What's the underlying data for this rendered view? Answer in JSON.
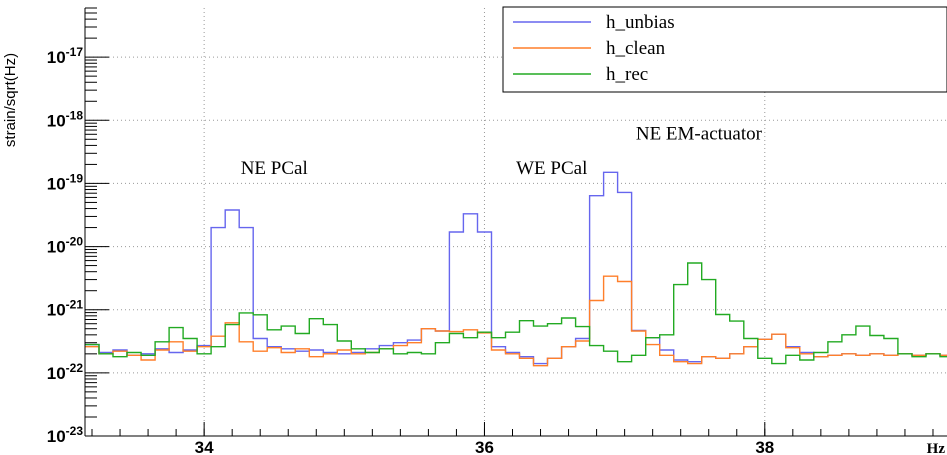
{
  "chart_data": {
    "type": "line",
    "ylabel": "strain/sqrt(Hz)",
    "xlabel": "Hz",
    "xlim": [
      33.15,
      39.3
    ],
    "ylim": [
      1e-23,
      6e-17
    ],
    "yscale": "log",
    "grid": true,
    "legend_position": "top-right",
    "x_ticks": [
      {
        "value": 34,
        "label": "34"
      },
      {
        "value": 36,
        "label": "36"
      },
      {
        "value": 38,
        "label": "38"
      }
    ],
    "y_ticks": [
      {
        "value": 1e-23,
        "base": "10",
        "exp": "-23"
      },
      {
        "value": 1e-22,
        "base": "10",
        "exp": "-22"
      },
      {
        "value": 1e-21,
        "base": "10",
        "exp": "-21"
      },
      {
        "value": 1e-20,
        "base": "10",
        "exp": "-20"
      },
      {
        "value": 1e-19,
        "base": "10",
        "exp": "-19"
      },
      {
        "value": 1e-18,
        "base": "10",
        "exp": "-18"
      },
      {
        "value": 1e-17,
        "base": "10",
        "exp": "-17"
      }
    ],
    "annotations": [
      {
        "text": "NE PCal",
        "x": 34.5,
        "y": 1.4e-19
      },
      {
        "text": "WE PCal",
        "x": 36.48,
        "y": 1.4e-19
      },
      {
        "text": "NE EM-actuator",
        "x": 37.53,
        "y": 5e-19
      }
    ],
    "bins": {
      "start": 33.15,
      "width": 0.1
    },
    "series": [
      {
        "name": "h_unbias",
        "color": "#6666ee",
        "values": [
          2.8e-22,
          2.1e-22,
          2.3e-22,
          1.9e-22,
          2e-22,
          2.4e-22,
          2.1e-22,
          2.3e-22,
          2.7e-22,
          2e-20,
          3.8e-20,
          2e-20,
          3.5e-22,
          2.6e-22,
          2.4e-22,
          2.2e-22,
          2.3e-22,
          2.1e-22,
          2e-22,
          2.1e-22,
          2.4e-22,
          2.7e-22,
          3e-22,
          3.3e-22,
          5e-22,
          4.6e-22,
          1.7e-20,
          3.3e-20,
          1.7e-20,
          2.6e-22,
          2.1e-22,
          1.8e-22,
          1.4e-22,
          1.7e-22,
          2.6e-22,
          3.5e-22,
          6.4e-20,
          1.5e-19,
          7.2e-20,
          4.7e-22,
          3.6e-22,
          2.3e-22,
          1.6e-22,
          1.5e-22,
          1.8e-22,
          1.7e-22,
          2e-22,
          2.6e-22,
          3.4e-22,
          4.1e-22,
          2.6e-22,
          2.1e-22,
          1.8e-22,
          1.9e-22,
          2e-22,
          1.9e-22,
          2e-22,
          1.9e-22,
          2e-22,
          1.9e-22,
          2e-22,
          1.9e-22
        ]
      },
      {
        "name": "h_clean",
        "color": "#ff7f2a",
        "values": [
          2.6e-22,
          2e-22,
          2.2e-22,
          1.9e-22,
          1.6e-22,
          2.3e-22,
          3.1e-22,
          2.2e-22,
          2.6e-22,
          3.8e-22,
          6.2e-22,
          3.1e-22,
          2.2e-22,
          2.5e-22,
          2.1e-22,
          2.4e-22,
          1.8e-22,
          2e-22,
          2.3e-22,
          2e-22,
          2.1e-22,
          2.4e-22,
          2.7e-22,
          3e-22,
          5e-22,
          4.6e-22,
          4.5e-22,
          4.8e-22,
          4.3e-22,
          2.3e-22,
          2e-22,
          1.7e-22,
          1.3e-22,
          1.7e-22,
          2.6e-22,
          3.2e-22,
          1.4e-21,
          3.4e-21,
          2.8e-21,
          4.6e-22,
          2.8e-22,
          1.9e-22,
          1.5e-22,
          1.4e-22,
          1.8e-22,
          1.7e-22,
          2e-22,
          2.6e-22,
          3.4e-22,
          4.1e-22,
          2.5e-22,
          2e-22,
          1.8e-22,
          1.9e-22,
          2e-22,
          1.9e-22,
          2e-22,
          1.9e-22,
          2e-22,
          1.9e-22,
          2e-22,
          1.9e-22
        ]
      },
      {
        "name": "h_rec",
        "color": "#22aa22",
        "values": [
          2.8e-22,
          2e-22,
          1.8e-22,
          2.1e-22,
          1.9e-22,
          3.1e-22,
          5.2e-22,
          3.5e-22,
          2e-22,
          2.6e-22,
          5.8e-22,
          8.9e-22,
          8.3e-22,
          4.8e-22,
          5.5e-22,
          4.2e-22,
          7.2e-22,
          5.8e-22,
          3.2e-22,
          2.4e-22,
          2.1e-22,
          2.4e-22,
          2e-22,
          2.1e-22,
          2e-22,
          3e-22,
          4.2e-22,
          3.6e-22,
          4.4e-22,
          3.6e-22,
          4.4e-22,
          6.7e-22,
          5.5e-22,
          6e-22,
          7.4e-22,
          5.4e-22,
          2.7e-22,
          2.2e-22,
          1.5e-22,
          1.9e-22,
          3.6e-22,
          4e-22,
          2.5e-21,
          5.5e-21,
          3e-21,
          8.4e-22,
          6.6e-22,
          3.5e-22,
          1.7e-22,
          1.4e-22,
          1.9e-22,
          1.6e-22,
          2.1e-22,
          3.1e-22,
          4e-22,
          5.5e-22,
          3.9e-22,
          3.5e-22,
          2e-22,
          1.8e-22,
          2e-22,
          1.8e-22
        ]
      }
    ]
  }
}
